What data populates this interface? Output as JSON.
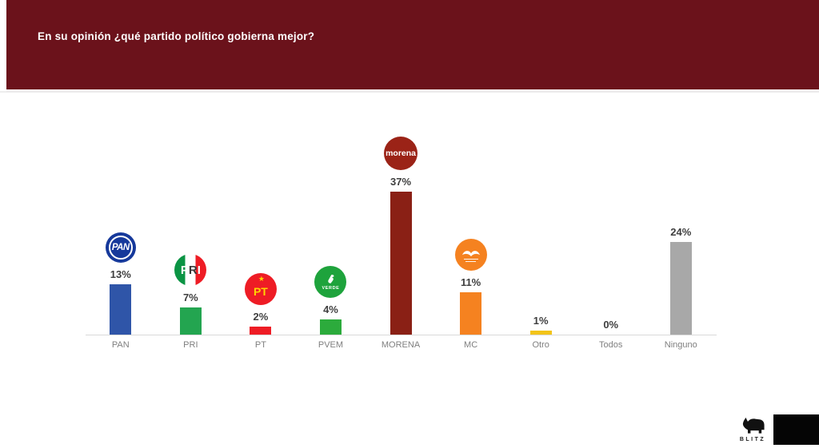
{
  "header": {
    "title": "En su opinión ¿qué partido político gobierna mejor?",
    "bg_color": "#6b121b",
    "text_color": "#ffffff"
  },
  "chart_data": {
    "type": "bar",
    "title": "En su opinión ¿qué partido político gobierna mejor?",
    "categories": [
      "PAN",
      "PRI",
      "PT",
      "PVEM",
      "MORENA",
      "MC",
      "Otro",
      "Todos",
      "Ninguno"
    ],
    "values": [
      13,
      7,
      2,
      4,
      37,
      11,
      1,
      0,
      24
    ],
    "value_labels": [
      "13%",
      "7%",
      "2%",
      "4%",
      "37%",
      "11%",
      "1%",
      "0%",
      "24%"
    ],
    "bar_colors": [
      "#2f55a8",
      "#23a550",
      "#ee1c25",
      "#2cab3c",
      "#8a2015",
      "#f58220",
      "#f2c41a",
      null,
      "#a8a8a8"
    ],
    "xlabel": "",
    "ylabel": "",
    "ylim": [
      0,
      40
    ],
    "grid": false,
    "legend_position": "none",
    "logos": [
      {
        "style": "pan",
        "text": "PAN"
      },
      {
        "style": "pri",
        "text": "PRI"
      },
      {
        "style": "pt",
        "text": "PT"
      },
      {
        "style": "pvem",
        "text": "VERDE"
      },
      {
        "style": "morena",
        "text": "morena"
      },
      {
        "style": "mc",
        "text": ""
      },
      null,
      null,
      null
    ]
  },
  "footer": {
    "brand": "BLITZ"
  },
  "colors": {
    "value_label": "#3f3f3f",
    "axis_label": "#7f7f7f",
    "axis_line": "#d9d9d9"
  }
}
